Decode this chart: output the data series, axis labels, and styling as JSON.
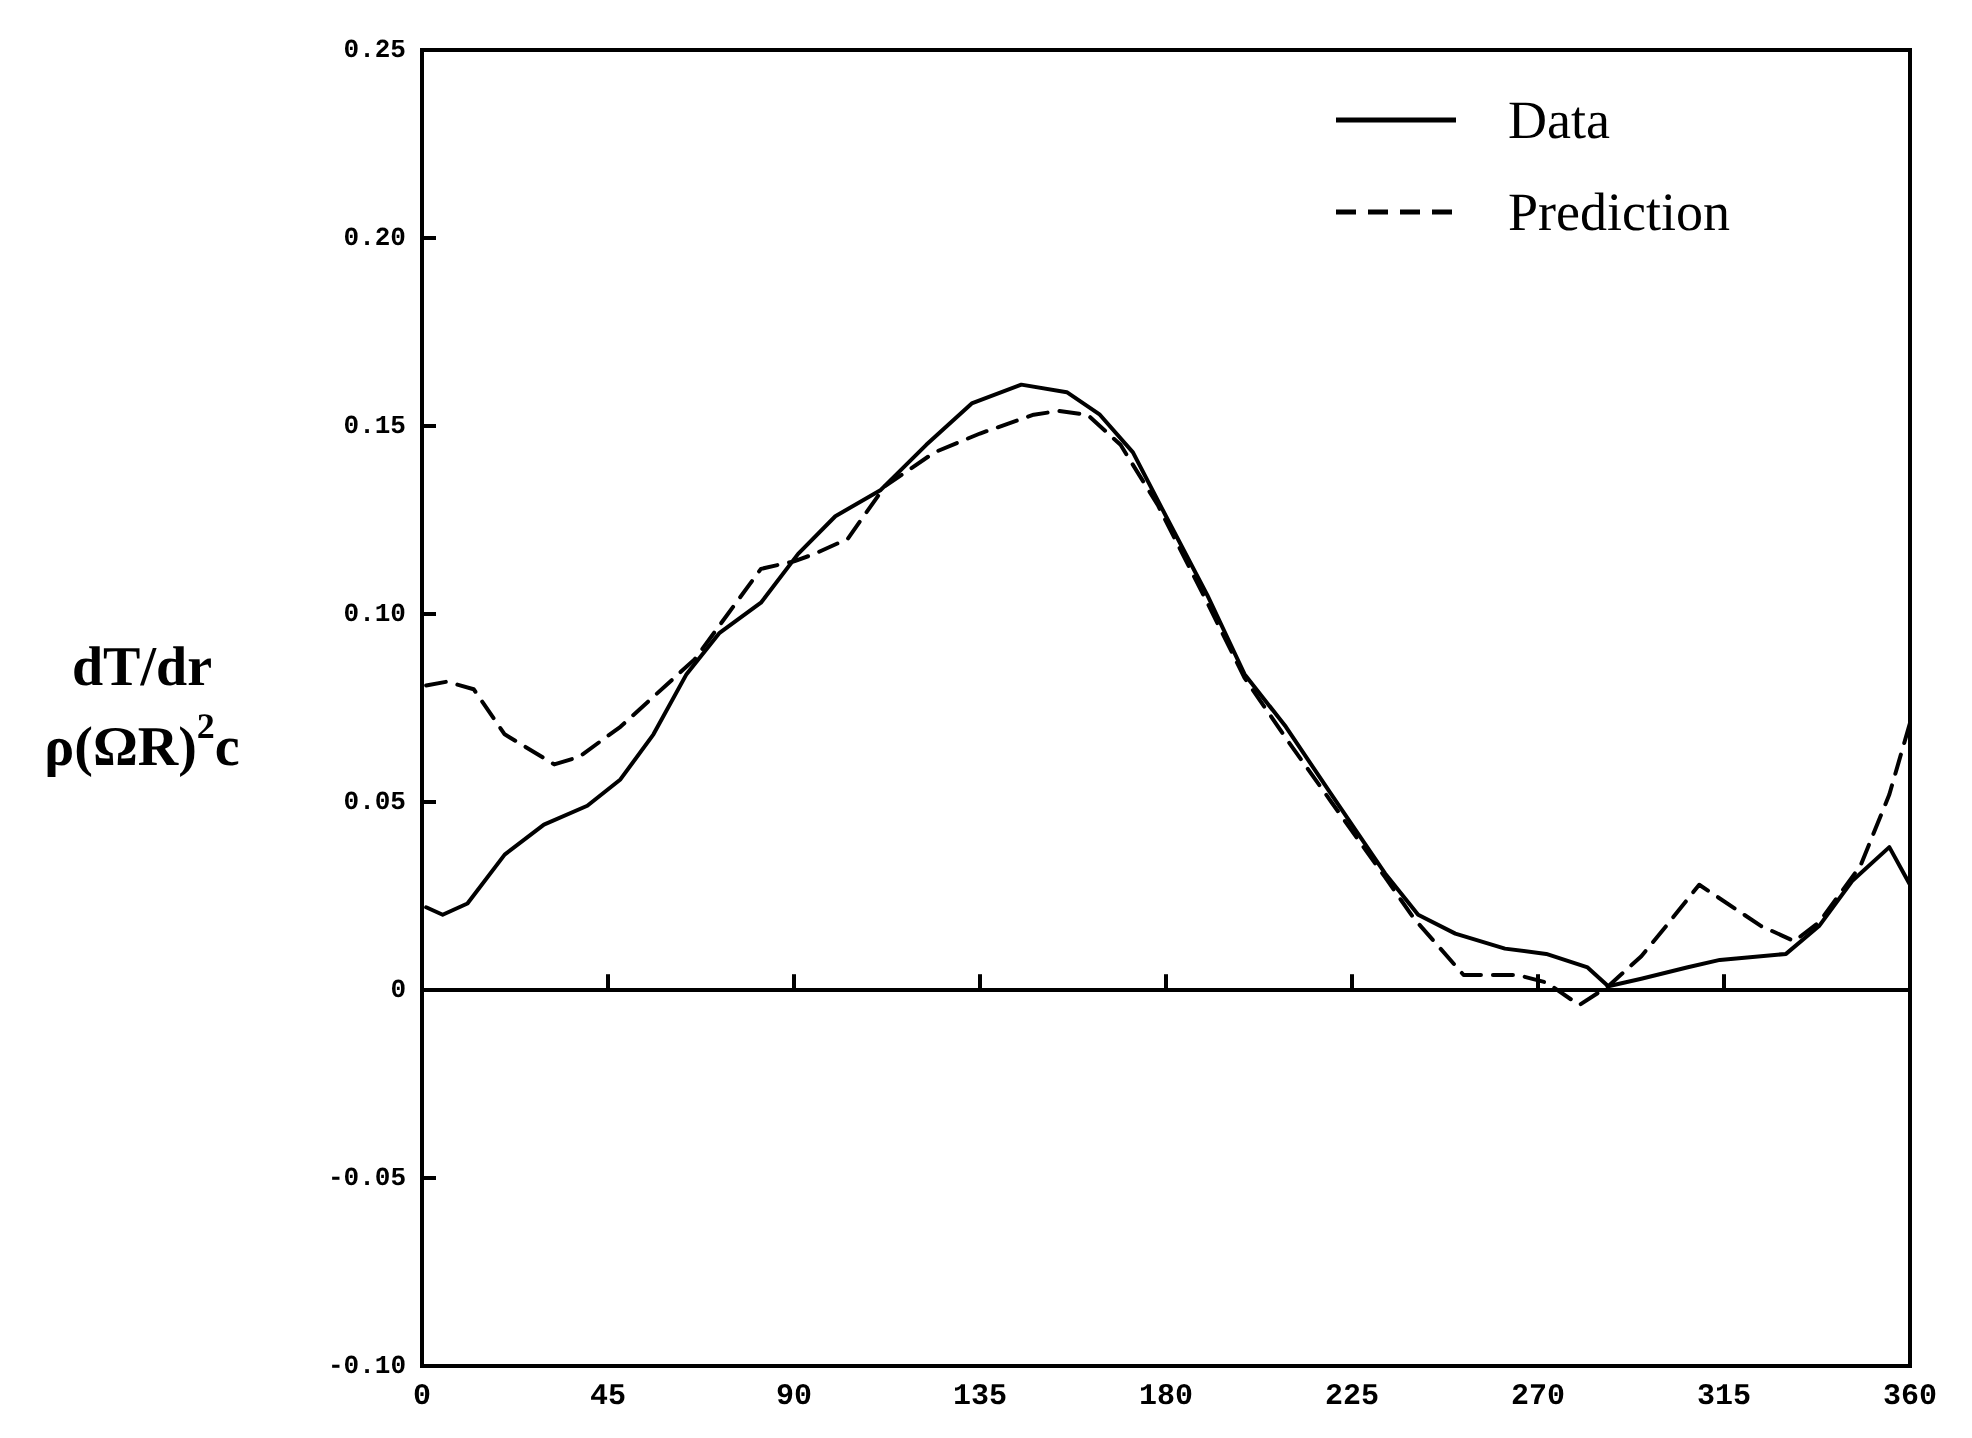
{
  "chart_data": {
    "type": "line",
    "ylabel": "dT/dr\nρ(ΩR)$^{2}$c",
    "xlim": [
      0,
      360
    ],
    "xticks": [
      0,
      45,
      90,
      135,
      180,
      225,
      270,
      315,
      360
    ],
    "ylim": [
      -0.1,
      0.25
    ],
    "yticks": [
      {
        "value": -0.1,
        "label": "-0.10"
      },
      {
        "value": -0.05,
        "label": "-0.05"
      },
      0,
      {
        "value": 0.05,
        "label": "0.05"
      },
      {
        "value": 0.1,
        "label": "0.10"
      },
      {
        "value": 0.15,
        "label": "0.15"
      },
      {
        "value": 0.2,
        "label": "0.20"
      },
      0.25
    ],
    "grid": false,
    "legend": "top right",
    "marker": "none",
    "ref_lines": [
      {
        "axis": "y",
        "value": 0,
        "color": "#000000"
      }
    ],
    "series": [
      {
        "name": "Data",
        "color": "#000000",
        "line_style": "solid",
        "x": [
          1,
          5,
          11,
          20,
          29.5,
          40,
          48,
          56,
          64,
          72,
          82,
          91,
          100,
          111,
          122,
          133,
          145,
          156,
          164,
          172,
          180,
          190,
          199,
          209,
          220,
          233,
          241,
          250,
          262,
          272,
          282,
          287,
          295,
          306,
          314,
          330,
          338,
          346,
          355,
          360
        ],
        "values": [
          0.022,
          0.02,
          0.023,
          0.036,
          0.044,
          0.049,
          0.056,
          0.068,
          0.084,
          0.095,
          0.103,
          0.116,
          0.126,
          0.133,
          0.145,
          0.156,
          0.161,
          0.159,
          0.153,
          0.143,
          0.126,
          0.105,
          0.084,
          0.07,
          0.052,
          0.031,
          0.02,
          0.015,
          0.011,
          0.0096,
          0.006,
          0.001,
          0.003,
          0.006,
          0.008,
          0.0096,
          0.017,
          0.029,
          0.038,
          0.028
        ]
      },
      {
        "name": "Prediction",
        "color": "#000000",
        "line_style": "dashed",
        "x": [
          1,
          6,
          12.5,
          20,
          32,
          38,
          48,
          59,
          66,
          74,
          82,
          90,
          95,
          103,
          112,
          124,
          135,
          148,
          154,
          161,
          169,
          178,
          190,
          199,
          209,
          220,
          233,
          240,
          252,
          265,
          272,
          280,
          287,
          295,
          301,
          309,
          324,
          332,
          338,
          348,
          355,
          360
        ],
        "values": [
          0.081,
          0.082,
          0.08,
          0.068,
          0.06,
          0.062,
          0.07,
          0.081,
          0.088,
          0.1,
          0.112,
          0.114,
          0.116,
          0.12,
          0.134,
          0.143,
          0.148,
          0.153,
          0.154,
          0.153,
          0.145,
          0.129,
          0.103,
          0.083,
          0.067,
          0.05,
          0.03,
          0.019,
          0.004,
          0.004,
          0.002,
          -0.004,
          0.001,
          0.009,
          0.017,
          0.028,
          0.017,
          0.013,
          0.018,
          0.033,
          0.052,
          0.071
        ]
      }
    ]
  }
}
